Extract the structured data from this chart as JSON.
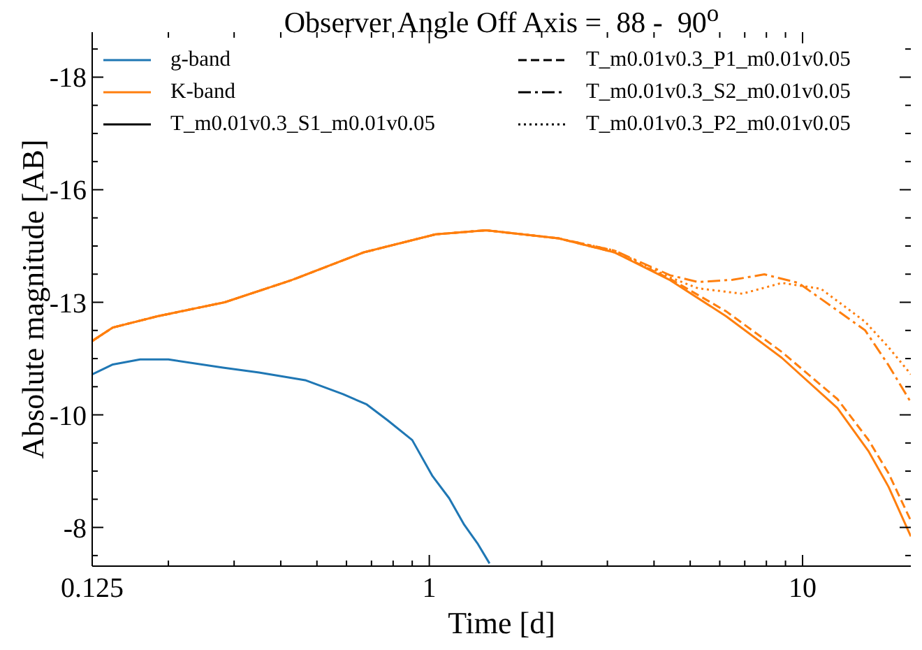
{
  "chart_data": {
    "type": "line",
    "title": "Observer Angle Off Axis =  88 -  90$^{o}$",
    "xlabel": "Time [d]",
    "ylabel": "Absolute magnitude [AB]",
    "log": "x",
    "marker": "none",
    "legend": "top",
    "xlim": [
      0.125,
      19.5
    ],
    "ylim": [
      -7.14,
      -19
    ],
    "xticks": [
      0.125,
      {
        "value": 0.2,
        "label": null
      },
      {
        "value": 0.3,
        "label": null
      },
      {
        "value": 0.4,
        "label": null
      },
      {
        "value": 0.5,
        "label": null
      },
      {
        "value": 0.6,
        "label": null
      },
      {
        "value": 0.7,
        "label": null
      },
      {
        "value": 0.8,
        "label": null
      },
      {
        "value": 0.9,
        "label": null
      },
      1,
      {
        "value": 2,
        "label": null
      },
      {
        "value": 3,
        "label": null
      },
      {
        "value": 4,
        "label": null
      },
      {
        "value": 5,
        "label": null
      },
      {
        "value": 6,
        "label": null
      },
      {
        "value": 7,
        "label": null
      },
      {
        "value": 8,
        "label": null
      },
      {
        "value": 9,
        "label": null
      },
      10
    ],
    "yticks": [
      {
        "value": -18.625,
        "label": null
      },
      {
        "value": -18,
        "label": "-18"
      },
      {
        "value": -17.375,
        "label": null
      },
      {
        "value": -16.75,
        "label": null
      },
      {
        "value": -16.125,
        "label": null
      },
      {
        "value": -15.5,
        "label": "-16"
      },
      {
        "value": -14.875,
        "label": null
      },
      {
        "value": -14.25,
        "label": null
      },
      {
        "value": -13.625,
        "label": null
      },
      {
        "value": -13,
        "label": "-13"
      },
      {
        "value": -12.375,
        "label": null
      },
      {
        "value": -11.75,
        "label": null
      },
      {
        "value": -11.125,
        "label": null
      },
      {
        "value": -10.5,
        "label": "-10"
      },
      {
        "value": -9.875,
        "label": null
      },
      {
        "value": -9.25,
        "label": null
      },
      {
        "value": -8.625,
        "label": null
      },
      {
        "value": -8,
        "label": "-8"
      },
      {
        "value": -7.375,
        "label": null
      }
    ],
    "annotations": [
      "T_m0.01v0.3_S1_m0.01v0.05",
      "T_m0.01v0.3_P1_m0.01v0.05",
      "T_m0.01v0.3_S2_m0.01v0.05",
      "T_m0.01v0.3_P2_m0.01v0.05"
    ],
    "series": [
      {
        "name": "g-band",
        "color": "#1f77b4",
        "line_style": "solid",
        "x": [
          0.125,
          0.142,
          0.168,
          0.2,
          0.28,
          0.35,
          0.465,
          0.587,
          0.68,
          0.773,
          0.9,
          1.02,
          1.13,
          1.24,
          1.35,
          1.45
        ],
        "values": [
          -11.4,
          -11.62,
          -11.73,
          -11.73,
          -11.55,
          -11.44,
          -11.27,
          -10.96,
          -10.73,
          -10.38,
          -9.94,
          -9.14,
          -8.65,
          -8.06,
          -7.63,
          -7.2
        ]
      },
      {
        "name": "K-band",
        "color": "#ff7f0e",
        "line_style": "solid",
        "x": [
          0.125,
          0.142,
          0.187,
          0.283,
          0.427,
          0.668,
          1.04,
          1.42,
          2.22,
          3.13,
          4.42,
          6.24,
          8.79,
          12.4,
          15,
          17,
          19.5
        ],
        "values": [
          -12.14,
          -12.44,
          -12.69,
          -13.0,
          -13.49,
          -14.11,
          -14.51,
          -14.6,
          -14.42,
          -14.11,
          -13.49,
          -12.69,
          -11.77,
          -10.65,
          -9.7,
          -8.9,
          -7.8
        ]
      },
      {
        "color": "#ff7f0e",
        "line_style": "dashed",
        "x": [
          0.125,
          0.142,
          0.187,
          0.283,
          0.427,
          0.668,
          1.04,
          1.42,
          2.22,
          3.13,
          4.42,
          6.24,
          8.79,
          12.4,
          15,
          17,
          19.5
        ],
        "values": [
          -12.14,
          -12.44,
          -12.69,
          -13.0,
          -13.49,
          -14.11,
          -14.51,
          -14.6,
          -14.42,
          -14.11,
          -13.52,
          -12.8,
          -11.9,
          -10.85,
          -9.95,
          -9.2,
          -8.15
        ]
      },
      {
        "color": "#ff7f0e",
        "line_style": "dashdot",
        "x": [
          0.125,
          0.142,
          0.187,
          0.283,
          0.427,
          0.668,
          1.04,
          1.42,
          2.22,
          3.13,
          4.42,
          5.25,
          6.5,
          7.9,
          9.75,
          12,
          14.7,
          17,
          19.5
        ],
        "values": [
          -12.14,
          -12.44,
          -12.69,
          -13.0,
          -13.49,
          -14.11,
          -14.51,
          -14.6,
          -14.42,
          -14.15,
          -13.6,
          -13.45,
          -13.5,
          -13.62,
          -13.43,
          -12.9,
          -12.38,
          -11.6,
          -10.78
        ]
      },
      {
        "color": "#ff7f0e",
        "line_style": "dotted",
        "x": [
          0.125,
          0.142,
          0.187,
          0.283,
          0.427,
          0.668,
          1.04,
          1.42,
          2.22,
          3.13,
          4.42,
          5.25,
          6.9,
          8.8,
          11.2,
          14.7,
          17,
          19.5
        ],
        "values": [
          -12.14,
          -12.44,
          -12.69,
          -13.0,
          -13.49,
          -14.11,
          -14.51,
          -14.6,
          -14.42,
          -14.15,
          -13.55,
          -13.31,
          -13.19,
          -13.43,
          -13.3,
          -12.57,
          -12.0,
          -11.4
        ]
      }
    ]
  }
}
